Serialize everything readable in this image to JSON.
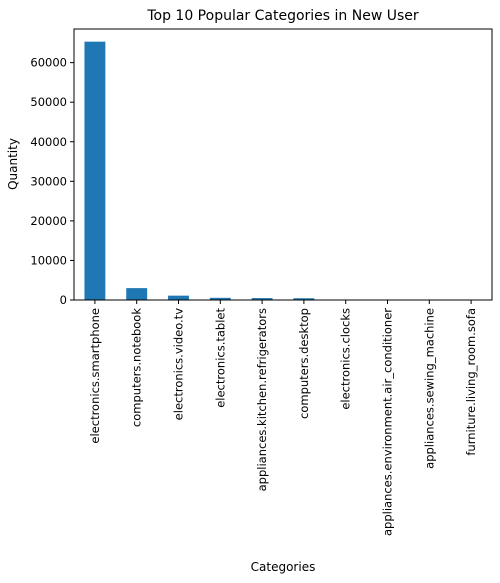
{
  "chart_data": {
    "type": "bar",
    "title": "Top 10 Popular Categories in New User",
    "xlabel": "Categories",
    "ylabel": "Quantity",
    "ylim": [
      0,
      68500
    ],
    "yticks": [
      0,
      10000,
      20000,
      30000,
      40000,
      50000,
      60000
    ],
    "grid": false,
    "bar_color": "#1f77b4",
    "categories": [
      "electronics.smartphone",
      "computers.notebook",
      "electronics.video.tv",
      "electronics.tablet",
      "appliances.kitchen.refrigerators",
      "computers.desktop",
      "electronics.clocks",
      "appliances.environment.air_conditioner",
      "appliances.sewing_machine",
      "furniture.living_room.sofa"
    ],
    "values": [
      65300,
      3000,
      1100,
      550,
      480,
      450,
      80,
      60,
      40,
      30
    ]
  }
}
